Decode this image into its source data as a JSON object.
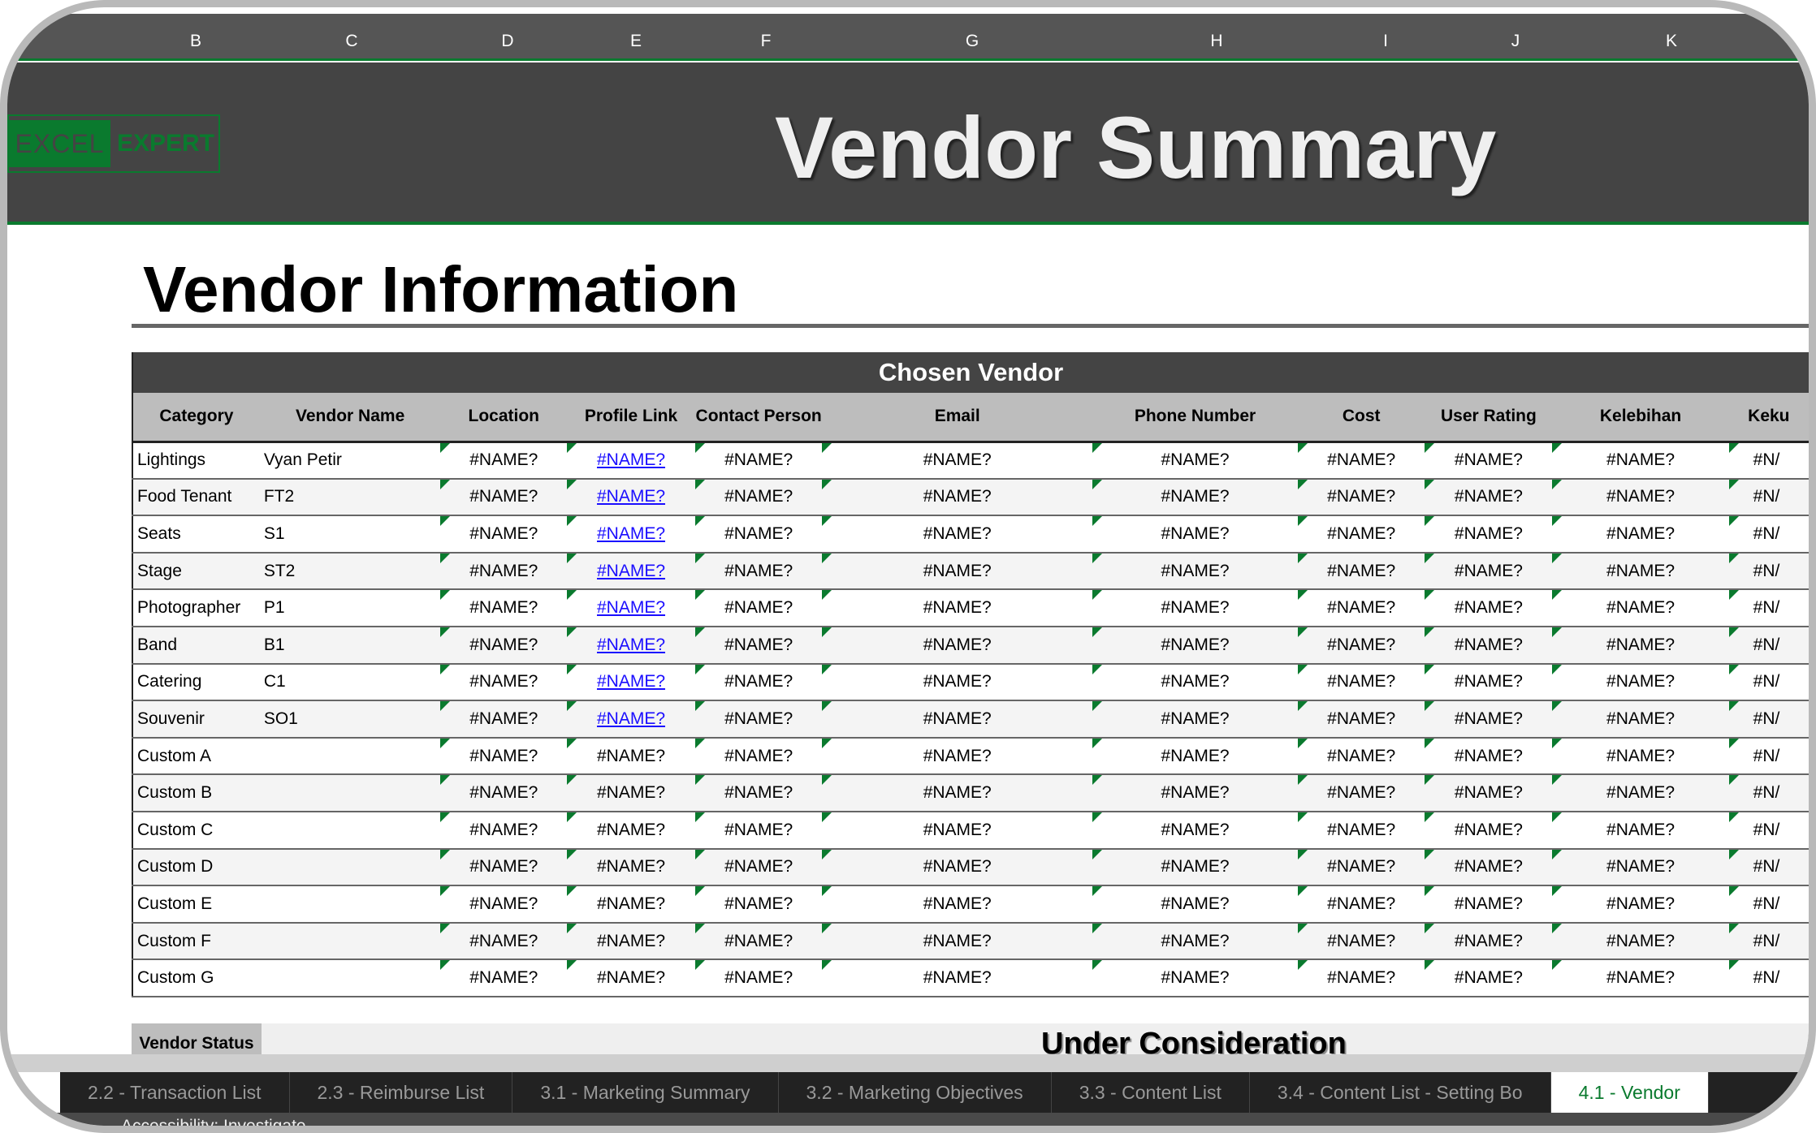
{
  "column_letters": [
    "B",
    "C",
    "D",
    "E",
    "F",
    "G",
    "H",
    "I",
    "J",
    "K"
  ],
  "logo": {
    "part1": "EXCEL",
    "part2": "EXPERT"
  },
  "banner_title": "Vendor Summary",
  "section_title": "Vendor Information",
  "table": {
    "title": "Chosen Vendor",
    "headers": [
      "Category",
      "Vendor Name",
      "Location",
      "Profile Link",
      "Contact Person",
      "Email",
      "Phone Number",
      "Cost",
      "User Rating",
      "Kelebihan",
      "Keku"
    ],
    "rows": [
      [
        "Lightings",
        "Vyan Petir"
      ],
      [
        "Food Tenant",
        "FT2"
      ],
      [
        "Seats",
        "S1"
      ],
      [
        "Stage",
        "ST2"
      ],
      [
        "Photographer",
        "P1"
      ],
      [
        "Band",
        "B1"
      ],
      [
        "Catering",
        "C1"
      ],
      [
        "Souvenir",
        "SO1"
      ],
      [
        "Custom A",
        ""
      ],
      [
        "Custom B",
        ""
      ],
      [
        "Custom C",
        ""
      ],
      [
        "Custom D",
        ""
      ],
      [
        "Custom E",
        ""
      ],
      [
        "Custom F",
        ""
      ],
      [
        "Custom G",
        ""
      ]
    ],
    "cell_value": "#NAME?",
    "last_col_value": "#N/",
    "linked_rows": 8
  },
  "vendor_status": {
    "label": "Vendor Status",
    "value": "Under Consideration"
  },
  "sheet_tabs": [
    "2.2 - Transaction List",
    "2.3 - Reimburse List",
    "3.1 - Marketing Summary",
    "3.2 - Marketing Objectives",
    "3.3 - Content List",
    "3.4 - Content List - Setting Bo",
    "4.1 - Vendor"
  ],
  "active_tab": 6,
  "status_bar": "Accessibility: Investigate",
  "colors": {
    "accent": "#0a7a2e",
    "banner": "#444444",
    "link": "#1a0dff"
  }
}
